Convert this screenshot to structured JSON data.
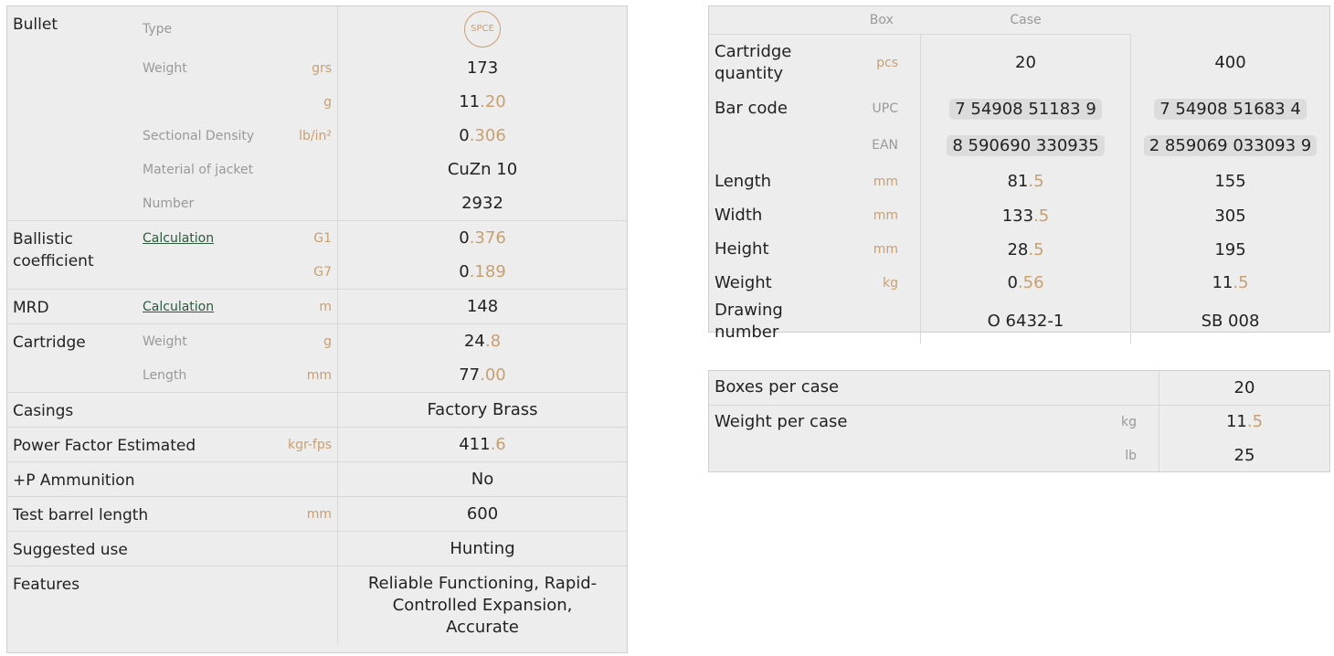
{
  "left": [
    {
      "label": "Bullet",
      "rows": [
        {
          "sub": "Type",
          "unit": "",
          "value": "SPCE",
          "icon": "spce-badge-icon"
        },
        {
          "sub": "Weight",
          "unit": "grs",
          "value": "173"
        },
        {
          "sub": "",
          "unit": "g",
          "value": "11.20"
        },
        {
          "sub": "Sectional Density",
          "unit": "lb/in²",
          "value": "0.306"
        },
        {
          "sub": "Material of jacket",
          "unit": "",
          "value": "CuZn 10"
        },
        {
          "sub": "Number",
          "unit": "",
          "value": "2932"
        }
      ]
    },
    {
      "label": "Ballistic coefficient",
      "rows": [
        {
          "sub": "Calculation",
          "link": true,
          "unit": "G1",
          "value": "0.376"
        },
        {
          "sub": "",
          "unit": "G7",
          "value": "0.189"
        }
      ]
    },
    {
      "label": "MRD",
      "rows": [
        {
          "sub": "Calculation",
          "link": true,
          "unit": "m",
          "value": "148"
        }
      ]
    },
    {
      "label": "Cartridge",
      "rows": [
        {
          "sub": "Weight",
          "unit": "g",
          "value": "24.8"
        },
        {
          "sub": "Length",
          "unit": "mm",
          "value": "77.00"
        }
      ]
    },
    {
      "label": "Casings",
      "wide": true,
      "rows": [
        {
          "unit": "",
          "value": "Factory Brass"
        }
      ]
    },
    {
      "label": "Power Factor Estimated",
      "wide": true,
      "rows": [
        {
          "unit": "kgr-fps",
          "value": "411.6"
        }
      ]
    },
    {
      "label": "+P Ammunition",
      "wide": true,
      "rows": [
        {
          "unit": "",
          "value": "No"
        }
      ]
    },
    {
      "label": "Test barrel length",
      "wide": true,
      "rows": [
        {
          "unit": "mm",
          "value": "600"
        }
      ]
    },
    {
      "label": "Suggested use",
      "wide": true,
      "rows": [
        {
          "unit": "",
          "value": "Hunting"
        }
      ]
    },
    {
      "label": "Features",
      "wide": true,
      "rows": [
        {
          "unit": "",
          "value": "Reliable Functioning, Rapid-Controlled Expansion, Accurate"
        }
      ]
    }
  ],
  "packaging": {
    "headers": [
      "Box",
      "Case"
    ],
    "rows": [
      {
        "label": "Cartridge quantity",
        "unit": "pcs",
        "box": "20",
        "case": "400"
      },
      {
        "label": "Bar code",
        "unit": "UPC",
        "grey": true,
        "box": "7 54908 51183 9",
        "case": "7 54908 51683 4",
        "barcode": true
      },
      {
        "label": "",
        "unit": "EAN",
        "grey": true,
        "box": "8 590690 330935",
        "case": "2 859069 033093 9",
        "barcode": true
      },
      {
        "label": "Length",
        "unit": "mm",
        "box": "81.5",
        "case": "155"
      },
      {
        "label": "Width",
        "unit": "mm",
        "box": "133.5",
        "case": "305"
      },
      {
        "label": "Height",
        "unit": "mm",
        "box": "28.5",
        "case": "195"
      },
      {
        "label": "Weight",
        "unit": "kg",
        "box": "0.56",
        "case": "11.5"
      },
      {
        "label": "Drawing number",
        "unit": "",
        "box": "O 6432-1",
        "case": "SB 008"
      }
    ]
  },
  "per_case": [
    {
      "label": "Boxes per case",
      "unit": "",
      "value": "20"
    },
    {
      "label": "Weight per case",
      "unit": "kg",
      "value": "11.5"
    },
    {
      "label": "",
      "unit": "lb",
      "value": "25"
    }
  ],
  "colors": {
    "accent": "#c8a070",
    "link": "#2d5a3d",
    "panel": "#ededed"
  }
}
